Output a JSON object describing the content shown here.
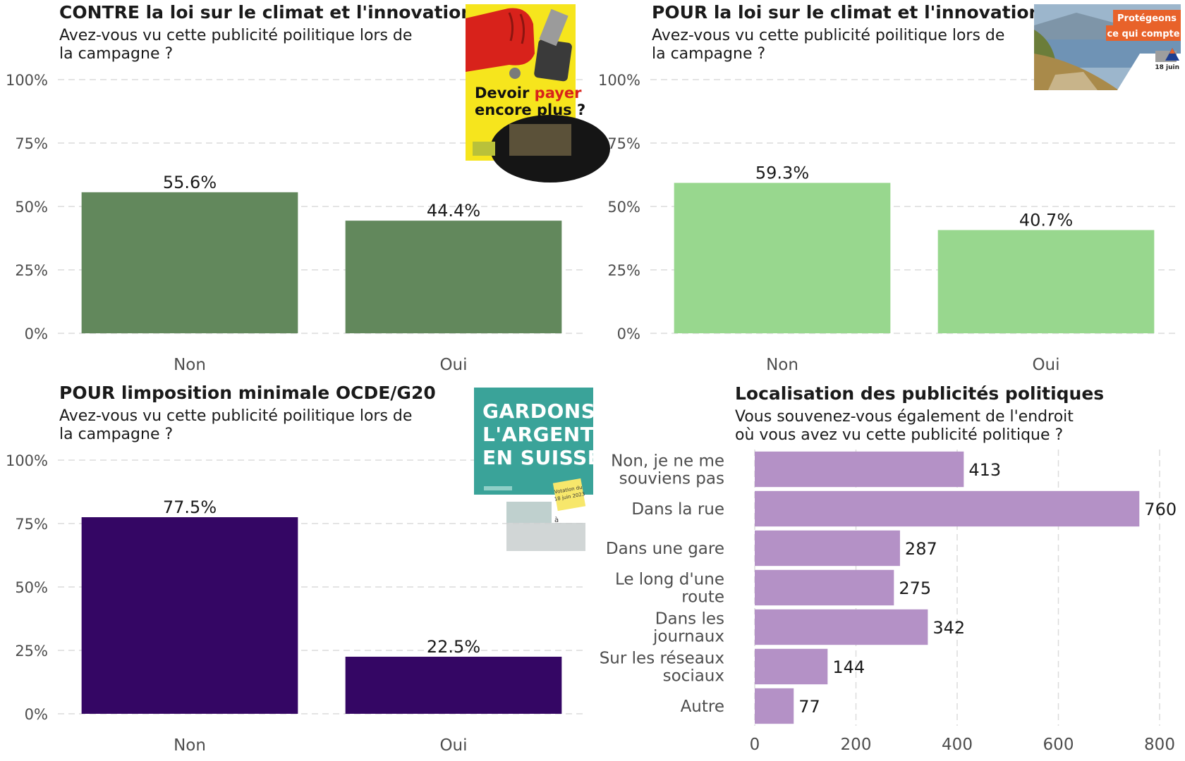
{
  "chart_data": [
    {
      "type": "bar",
      "title": "CONTRE la loi sur le climat et l'innovation",
      "subtitle": [
        "Avez-vous vu cette publicité poilitique lors de",
        "la campagne ?"
      ],
      "categories": [
        "Non",
        "Oui"
      ],
      "values": [
        55.6,
        44.4
      ],
      "value_labels": [
        "55.6%",
        "44.4%"
      ],
      "yticks": [
        "0%",
        "25%",
        "50%",
        "75%",
        "100%"
      ],
      "ylim": [
        0,
        100
      ],
      "color": "#62885c",
      "poster": {
        "icon": "fist-wallet-poster-icon",
        "line1": [
          "Devoir ",
          "payer"
        ],
        "line2": "encore plus ?",
        "bg": "#f6e51d",
        "accent": "#d8221b"
      }
    },
    {
      "type": "bar",
      "title": "POUR la loi sur le climat et l'innovation",
      "subtitle": [
        "Avez-vous vu cette publicité poilitique lors de",
        "la campagne ?"
      ],
      "categories": [
        "Non",
        "Oui"
      ],
      "values": [
        59.3,
        40.7
      ],
      "value_labels": [
        "59.3%",
        "40.7%"
      ],
      "yticks": [
        "0%",
        "25%",
        "50%",
        "75%",
        "100%"
      ],
      "ylim": [
        0,
        100
      ],
      "color": "#98d78e",
      "poster": {
        "icon": "vineyard-lake-poster-icon",
        "line1": "Protégeons",
        "line2": "ce qui compte",
        "date": "18 juin",
        "accent": "#e8622a"
      }
    },
    {
      "type": "bar",
      "title": "POUR limposition minimale OCDE/G20",
      "subtitle": [
        "Avez-vous vu cette publicité poilitique lors de",
        "la campagne ?"
      ],
      "categories": [
        "Non",
        "Oui"
      ],
      "values": [
        77.5,
        22.5
      ],
      "value_labels": [
        "77.5%",
        "22.5%"
      ],
      "yticks": [
        "0%",
        "25%",
        "50%",
        "75%",
        "100%"
      ],
      "ylim": [
        0,
        100
      ],
      "color": "#340664",
      "poster": {
        "icon": "teal-text-poster-icon",
        "lines": [
          "GARDONS",
          "L'ARGENT",
          "EN SUISSE"
        ],
        "note": [
          "Votation du",
          "18 juin 2023"
        ],
        "small": "à",
        "bg": "#3aa399",
        "note_color": "#f7e76b"
      }
    },
    {
      "type": "bar",
      "orientation": "horizontal",
      "title": "Localisation des publicités politiques",
      "subtitle": [
        "Vous souvenez-vous également de l'endroit",
        "où vous avez vu cette publicité politique ?"
      ],
      "categories": [
        [
          "Non, je ne me",
          "souviens pas"
        ],
        [
          "Dans la rue"
        ],
        [
          "Dans une gare"
        ],
        [
          "Le long d'une",
          "route"
        ],
        [
          "Dans les",
          "journaux"
        ],
        [
          "Sur les réseaux",
          "sociaux"
        ],
        [
          "Autre"
        ]
      ],
      "values": [
        413,
        760,
        287,
        275,
        342,
        144,
        77
      ],
      "xticks": [
        "0",
        "200",
        "400",
        "600",
        "800"
      ],
      "xlim": [
        0,
        800
      ],
      "color": "#b491c6"
    }
  ]
}
